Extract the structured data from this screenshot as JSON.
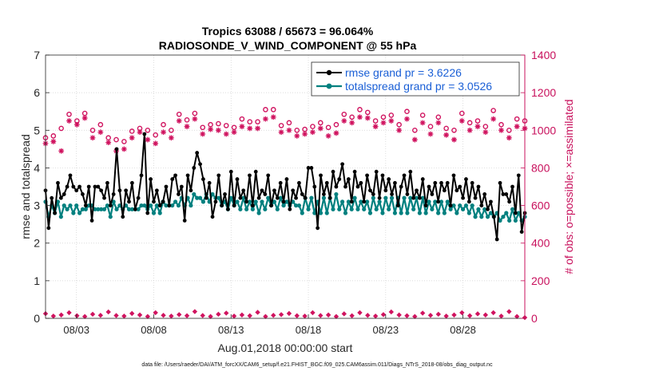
{
  "chart_data": {
    "type": "line",
    "title_line1": "Tropics 63088 / 65673 = 96.064%",
    "title_line2": "RADIOSONDE_V_WIND_COMPONENT @ 55 hPa",
    "xlabel": "Aug.01,2018 00:00:00 start",
    "ylabel_left": "rmse and totalspread",
    "ylabel_right": "# of obs: o=possible; ×=assimilated",
    "x_tick_labels": [
      "08/03",
      "08/08",
      "08/13",
      "08/18",
      "08/23",
      "08/28"
    ],
    "x_tick_days": [
      3,
      8,
      13,
      18,
      23,
      28
    ],
    "xlim": [
      1.0,
      32.0
    ],
    "ylim_left": [
      0,
      7
    ],
    "yticks_left": [
      "0",
      "1",
      "2",
      "3",
      "4",
      "5",
      "6",
      "7"
    ],
    "ylim_right": [
      0,
      1400
    ],
    "yticks_right": [
      "0",
      "200",
      "400",
      "600",
      "800",
      "1000",
      "1200",
      "1400"
    ],
    "legend": {
      "position": "top-right",
      "entries": [
        "rmse grand pr = 3.6226",
        "totalspread grand pr = 3.0526"
      ]
    },
    "colors": {
      "rmse": "#000000",
      "spread": "#00807f",
      "obs": "#d0135f",
      "axis": "#262626"
    },
    "series": [
      {
        "name": "rmse",
        "axis": "left",
        "values": [
          3.4,
          2.4,
          3.2,
          2.8,
          3.6,
          3.2,
          3.3,
          3.5,
          3.8,
          3.5,
          3.4,
          3.5,
          3.3,
          3.0,
          3.5,
          2.6,
          3.5,
          3.5,
          3.4,
          3.2,
          3.6,
          3.0,
          3.3,
          4.5,
          3.4,
          2.7,
          3.4,
          3.1,
          3.6,
          2.9,
          3.2,
          3.8,
          4.9,
          2.8,
          3.7,
          3.1,
          3.4,
          3.0,
          3.1,
          3.5,
          3.0,
          3.7,
          3.8,
          3.3,
          3.5,
          2.6,
          3.8,
          3.4,
          4.0,
          4.4,
          4.1,
          3.7,
          3.2,
          3.6,
          2.7,
          3.1,
          3.8,
          3.0,
          3.3,
          2.9,
          3.9,
          3.0,
          3.7,
          3.2,
          3.4,
          3.1,
          3.8,
          3.0,
          3.9,
          3.2,
          3.4,
          3.3,
          3.8,
          3.0,
          3.4,
          3.2,
          3.6,
          3.1,
          3.7,
          2.9,
          3.4,
          3.2,
          3.6,
          3.3,
          3.2,
          4.0,
          4.0,
          3.5,
          2.4,
          3.8,
          3.3,
          3.6,
          3.2,
          3.9,
          3.5,
          3.7,
          4.1,
          3.5,
          3.7,
          3.1,
          3.9,
          3.5,
          3.6,
          3.1,
          3.8,
          3.4,
          3.3,
          3.9,
          3.2,
          3.8,
          3.4,
          3.7,
          3.3,
          3.6,
          3.0,
          3.5,
          3.8,
          3.3,
          3.9,
          3.2,
          3.4,
          3.2,
          3.7,
          3.0,
          3.5,
          3.3,
          3.6,
          3.1,
          3.6,
          3.4,
          3.6,
          3.0,
          3.8,
          3.4,
          3.5,
          3.2,
          3.7,
          3.1,
          3.6,
          3.2,
          3.5,
          3.0,
          3.3,
          2.9,
          3.1,
          2.7,
          2.1,
          3.6,
          3.3,
          3.3,
          3.1,
          3.5,
          2.8,
          3.8,
          2.3,
          2.8
        ]
      },
      {
        "name": "totalspread",
        "axis": "left",
        "values": [
          3.1,
          2.7,
          3.0,
          2.8,
          3.1,
          2.7,
          3.0,
          2.9,
          3.0,
          2.8,
          3.0,
          2.8,
          2.9,
          2.9,
          3.0,
          3.0,
          2.9,
          2.9,
          2.9,
          2.9,
          3.0,
          2.7,
          3.1,
          2.9,
          3.0,
          2.9,
          3.0,
          2.9,
          2.9,
          2.9,
          2.9,
          3.0,
          3.0,
          2.9,
          3.0,
          2.8,
          3.0,
          2.8,
          3.1,
          3.0,
          3.0,
          3.0,
          3.1,
          3.0,
          3.2,
          3.0,
          3.2,
          3.0,
          3.3,
          3.2,
          3.2,
          3.1,
          3.3,
          3.1,
          3.3,
          3.2,
          3.2,
          3.0,
          3.1,
          2.9,
          3.2,
          3.0,
          3.1,
          2.9,
          3.2,
          2.9,
          3.1,
          2.9,
          3.1,
          2.8,
          3.1,
          2.9,
          3.2,
          3.0,
          3.1,
          2.9,
          3.2,
          3.0,
          3.1,
          3.0,
          3.1,
          3.0,
          3.0,
          2.8,
          3.2,
          2.9,
          3.2,
          2.8,
          3.1,
          2.8,
          3.2,
          2.8,
          3.2,
          2.9,
          3.3,
          2.9,
          3.1,
          2.8,
          3.1,
          2.9,
          3.2,
          2.9,
          3.1,
          2.9,
          3.1,
          2.8,
          3.2,
          2.9,
          3.1,
          2.8,
          3.2,
          2.9,
          3.2,
          2.8,
          3.2,
          2.8,
          3.2,
          2.8,
          3.2,
          2.9,
          3.2,
          2.8,
          3.2,
          2.8,
          3.1,
          2.9,
          3.1,
          2.8,
          3.1,
          2.8,
          3.1,
          2.9,
          3.0,
          2.8,
          3.0,
          2.9,
          3.0,
          2.8,
          3.0,
          2.7,
          2.9,
          2.7,
          2.9,
          2.7,
          2.8,
          2.7,
          2.8,
          2.6,
          2.7,
          2.8,
          2.6,
          2.9,
          2.6,
          2.8,
          2.6,
          2.7
        ]
      },
      {
        "name": "obs_possible",
        "axis": "right",
        "values": [
          960,
          970,
          1010,
          1085,
          1050,
          1090,
          1000,
          1030,
          960,
          950,
          940,
          995,
          1010,
          1000,
          975,
          1030,
          1000,
          1085,
          1055,
          1090,
          1015,
          1030,
          1035,
          1025,
          1015,
          1060,
          1045,
          1045,
          1110,
          1110,
          1025,
          1040,
          1000,
          1005,
          1020,
          1040,
          1015,
          1030,
          1085,
          1070,
          1110,
          1095,
          1050,
          1070,
          1080,
          1030,
          1100,
          1000,
          1080,
          1020,
          1070,
          1010,
          1000,
          1090,
          1040,
          1050,
          1020,
          1105,
          1030,
          1000,
          1060,
          1050
        ]
      },
      {
        "name": "obs_assimilated",
        "axis": "right",
        "values": [
          930,
          940,
          890,
          1050,
          1030,
          1065,
          960,
          990,
          935,
          890,
          900,
          960,
          990,
          950,
          930,
          990,
          960,
          1050,
          1020,
          1060,
          980,
          1005,
          1000,
          980,
          990,
          1020,
          1010,
          1010,
          1060,
          1070,
          990,
          1000,
          970,
          980,
          990,
          1010,
          970,
          985,
          1050,
          1040,
          1070,
          1065,
          1020,
          1040,
          1050,
          1000,
          1060,
          950,
          1040,
          980,
          1040,
          975,
          950,
          1050,
          1000,
          1020,
          990,
          1060,
          1000,
          960,
          1020,
          1010
        ]
      },
      {
        "name": "obs_low",
        "axis": "right",
        "values": [
          25,
          12,
          18,
          30,
          14,
          10,
          22,
          16,
          34,
          15,
          12,
          26,
          18,
          10,
          30,
          16,
          12,
          20,
          14,
          36,
          15,
          10,
          22,
          28,
          12,
          18,
          14,
          32,
          10,
          16,
          20,
          26,
          14,
          12,
          30,
          15,
          18,
          10,
          24,
          14,
          30,
          16,
          12,
          20,
          34,
          18,
          14,
          10,
          28,
          16,
          22,
          12,
          18,
          30,
          14,
          24,
          18,
          30,
          12,
          36,
          10,
          4
        ]
      }
    ]
  },
  "footnote": "data file: /Users/raeder/DAI/ATM_forcXX/CAM6_setup/f.e21.FHIST_BGC.f09_025.CAM6assim.011/Diags_NTrS_2018-08/obs_diag_output.nc"
}
